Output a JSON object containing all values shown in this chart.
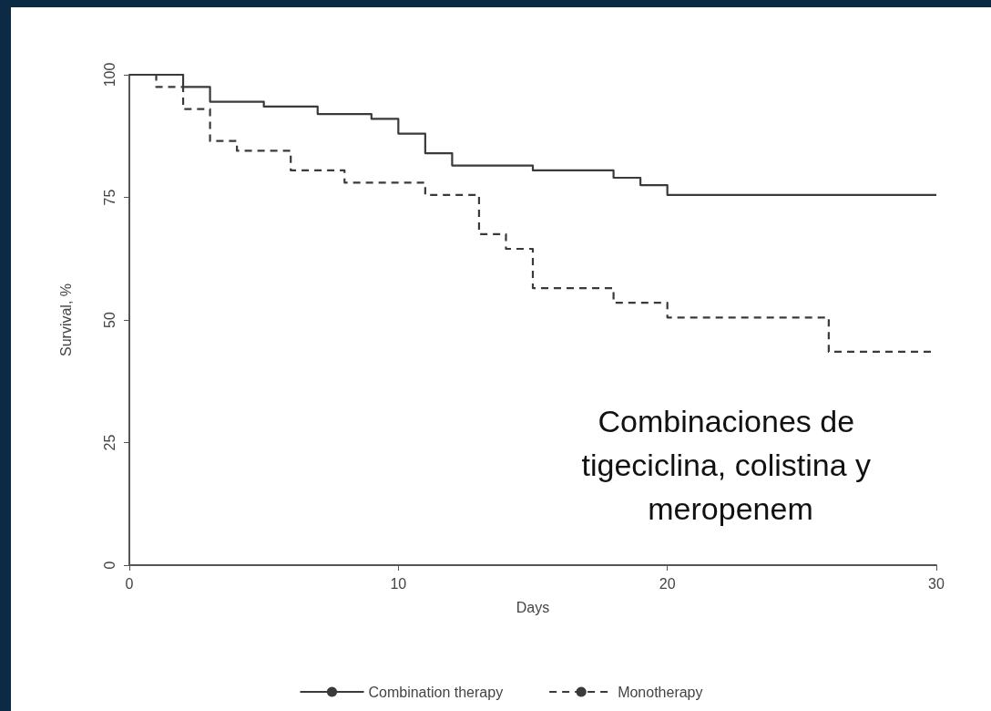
{
  "chart_data": {
    "type": "step",
    "xlabel": "Days",
    "ylabel": "Survival, %",
    "xlim": [
      0,
      30
    ],
    "xticks": [
      0,
      10,
      20,
      30
    ],
    "ylim": [
      0,
      100
    ],
    "yticks": [
      0,
      25,
      50,
      75,
      100
    ],
    "grid": false,
    "legend": "bottom",
    "marker": "none",
    "annotations": [
      "Combinaciones de tigeciclina, colistina y meropenem"
    ],
    "series": [
      {
        "name": "Combination therapy",
        "color": "#3a3a3a",
        "line_style": "solid",
        "x": [
          0,
          2,
          3,
          5,
          7,
          9,
          10,
          11,
          12,
          15,
          18,
          19,
          20,
          30
        ],
        "values": [
          100,
          97.5,
          94.5,
          93.5,
          92,
          91,
          88,
          84,
          81.5,
          80.5,
          79,
          77.5,
          75.5,
          75.5
        ]
      },
      {
        "name": "Monotherapy",
        "color": "#3a3a3a",
        "line_style": "dashed",
        "x": [
          0,
          1,
          2,
          3,
          4,
          6,
          8,
          11,
          13,
          14,
          15,
          18,
          20,
          26,
          30
        ],
        "values": [
          100,
          97.5,
          93,
          86.5,
          84.5,
          80.5,
          78,
          75.5,
          67.5,
          64.5,
          56.5,
          53.5,
          50.5,
          43.5,
          43.5
        ]
      }
    ]
  }
}
